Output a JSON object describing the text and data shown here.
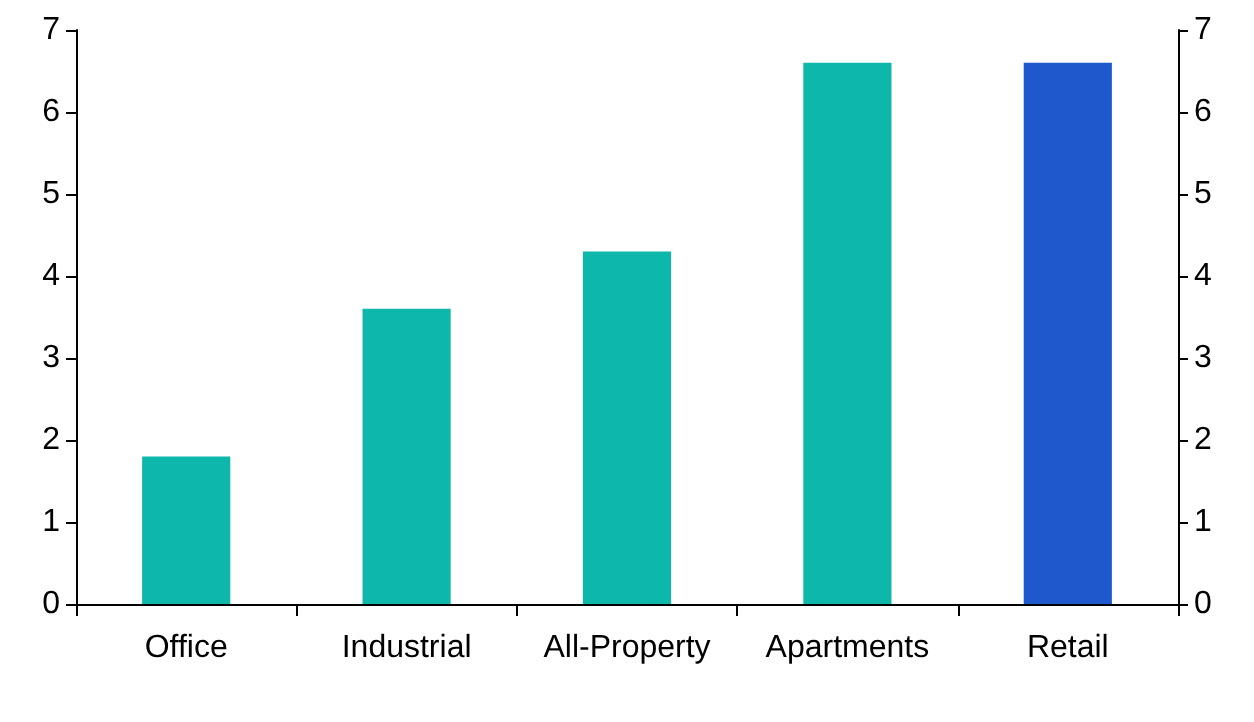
{
  "chart_data": {
    "type": "bar",
    "categories": [
      "Office",
      "Industrial",
      "All-Property",
      "Apartments",
      "Retail"
    ],
    "values": [
      1.8,
      3.6,
      4.3,
      6.6,
      6.6
    ],
    "colors": [
      "#0db8aa",
      "#0db8aa",
      "#0db8aa",
      "#0db8aa",
      "#1f57cc"
    ],
    "ylim": [
      0,
      7
    ],
    "yticks": [
      0,
      1,
      2,
      3,
      4,
      5,
      6,
      7
    ],
    "y2lim": [
      0,
      7
    ],
    "y2ticks": [
      0,
      1,
      2,
      3,
      4,
      5,
      6,
      7
    ],
    "grid": false
  }
}
